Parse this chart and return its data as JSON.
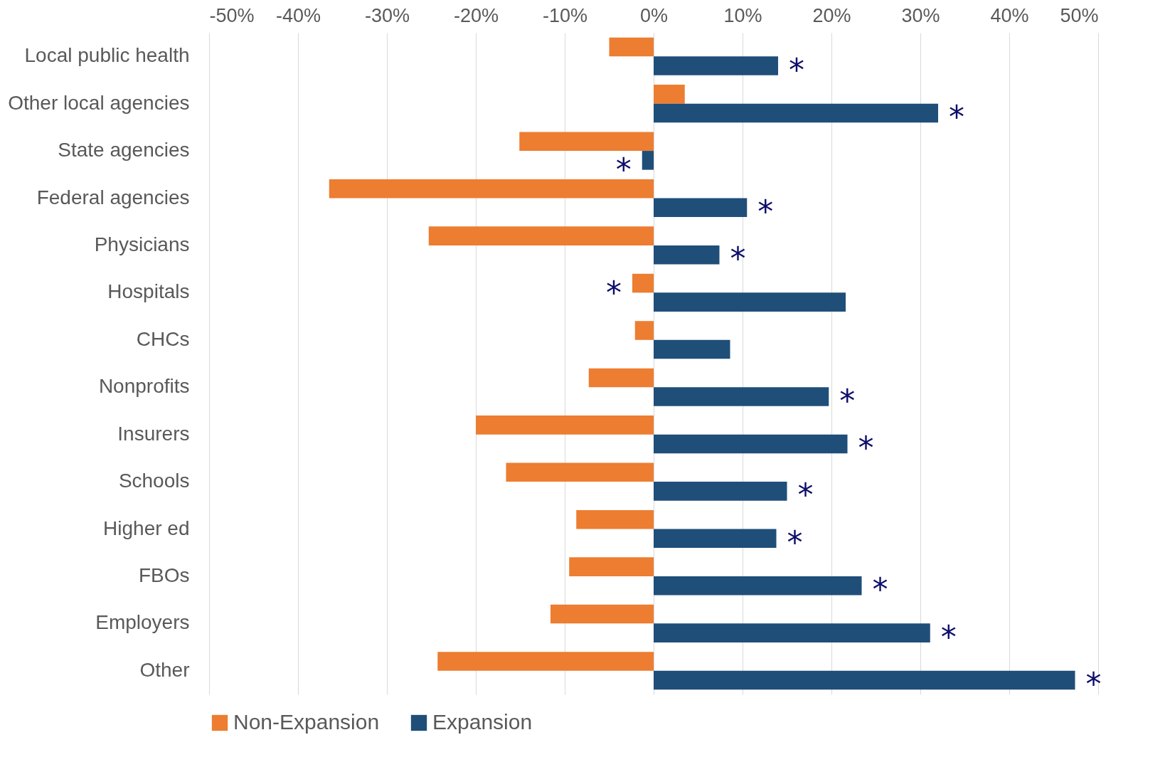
{
  "chart_data": {
    "type": "bar",
    "orientation": "horizontal",
    "categories": [
      "Local public health",
      "Other local agencies",
      "State agencies",
      "Federal agencies",
      "Physicians",
      "Hospitals",
      "CHCs",
      "Nonprofits",
      "Insurers",
      "Schools",
      "Higher ed",
      "FBOs",
      "Employers",
      "Other"
    ],
    "series": [
      {
        "name": "Non-Expansion",
        "color": "#ed7d31",
        "values": [
          -5.0,
          3.5,
          -15.1,
          -36.5,
          -25.3,
          -2.4,
          -2.1,
          -7.3,
          -20.0,
          -16.6,
          -8.7,
          -9.5,
          -11.6,
          -24.3
        ],
        "value_labels": [
          null,
          null,
          null,
          null,
          null,
          "*",
          null,
          null,
          null,
          null,
          null,
          null,
          null,
          null
        ]
      },
      {
        "name": "Expansion",
        "color": "#1f4e79",
        "values": [
          14.0,
          32.0,
          -1.3,
          10.5,
          7.4,
          21.6,
          8.6,
          19.7,
          21.8,
          15.0,
          13.8,
          23.4,
          31.1,
          47.4
        ],
        "value_labels": [
          "*",
          "*",
          "*",
          "*",
          "*",
          null,
          null,
          "*",
          "*",
          "*",
          "*",
          "*",
          "*",
          "*"
        ]
      }
    ],
    "xlim": [
      -50,
      50
    ],
    "xticks": [
      {
        "value": -50,
        "label": "-50%"
      },
      {
        "value": -40,
        "label": "-40%"
      },
      {
        "value": -30,
        "label": "-30%"
      },
      {
        "value": -20,
        "label": "-20%"
      },
      {
        "value": -10,
        "label": "-10%"
      },
      {
        "value": 0,
        "label": "0%"
      },
      {
        "value": 10,
        "label": "10%"
      },
      {
        "value": 20,
        "label": "20%"
      },
      {
        "value": 30,
        "label": "30%"
      },
      {
        "value": 40,
        "label": "40%"
      },
      {
        "value": 50,
        "label": "50%"
      }
    ],
    "grid": "x",
    "legend": "bottom"
  }
}
